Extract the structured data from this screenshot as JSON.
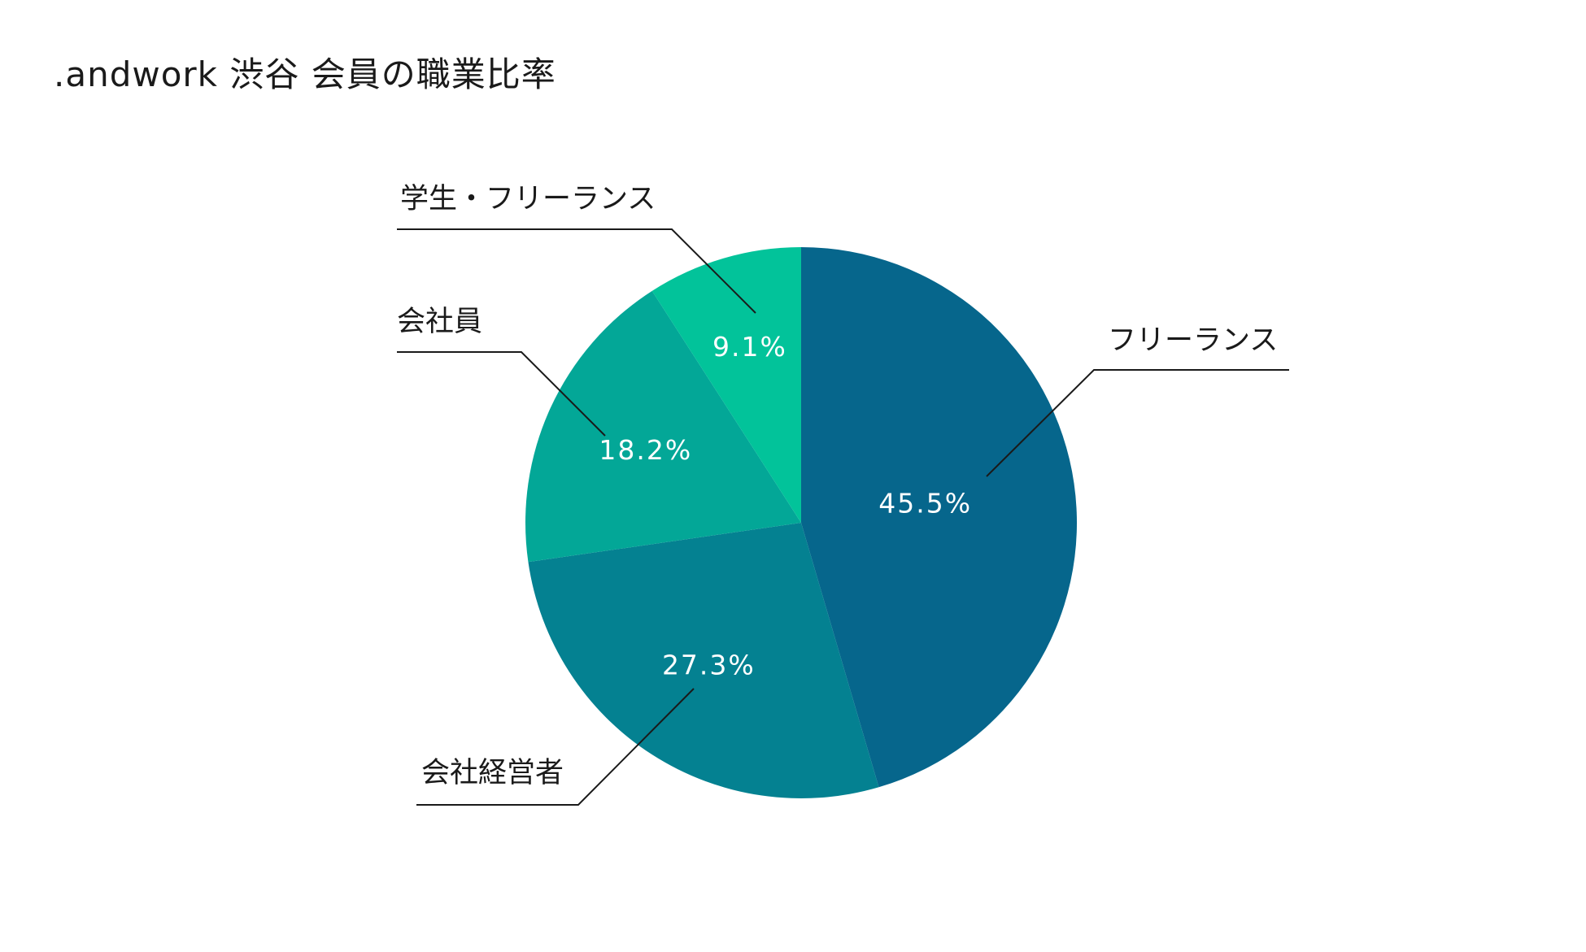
{
  "chart_data": {
    "type": "pie",
    "title": ".andwork 渋谷 会員の職業比率",
    "categories": [
      "フリーランス",
      "会社経営者",
      "会社員",
      "学生・フリーランス"
    ],
    "values": [
      45.5,
      27.3,
      18.2,
      9.1
    ],
    "value_labels": [
      "45.5%",
      "27.3%",
      "18.2%",
      "9.1%"
    ],
    "colors": [
      "#06668c",
      "#048191",
      "#03a797",
      "#02c39a"
    ],
    "start_angle": "12 o'clock",
    "direction": "clockwise",
    "legend": "none (leader-line labels)"
  }
}
